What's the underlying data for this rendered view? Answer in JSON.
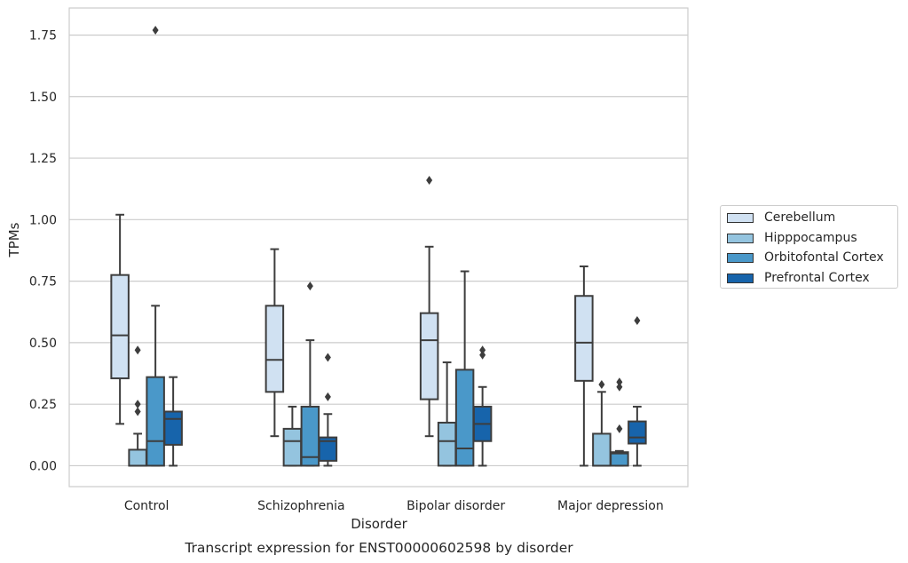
{
  "chart_data": {
    "type": "box",
    "caption": "Transcript expression for ENST00000602598 by disorder",
    "xlabel": "Disorder",
    "ylabel": "TPMs",
    "ylim": [
      -0.085,
      1.86
    ],
    "yticks": [
      0.0,
      0.25,
      0.5,
      0.75,
      1.0,
      1.25,
      1.5,
      1.75
    ],
    "ytick_labels": [
      "0.00",
      "0.25",
      "0.50",
      "0.75",
      "1.00",
      "1.25",
      "1.50",
      "1.75"
    ],
    "grid": true,
    "legend_position": "right",
    "categories": [
      "Control",
      "Schizophrenia",
      "Bipolar disorder",
      "Major depression"
    ],
    "series": [
      {
        "name": "Cerebellum",
        "color": "#d0e1f2",
        "boxes": [
          {
            "whisker_low": 0.17,
            "q1": 0.355,
            "median": 0.53,
            "q3": 0.775,
            "whisker_high": 1.02,
            "outliers": []
          },
          {
            "whisker_low": 0.12,
            "q1": 0.3,
            "median": 0.43,
            "q3": 0.65,
            "whisker_high": 0.88,
            "outliers": []
          },
          {
            "whisker_low": 0.12,
            "q1": 0.27,
            "median": 0.51,
            "q3": 0.62,
            "whisker_high": 0.89,
            "outliers": [
              1.16
            ]
          },
          {
            "whisker_low": 0.0,
            "q1": 0.345,
            "median": 0.5,
            "q3": 0.69,
            "whisker_high": 0.81,
            "outliers": []
          }
        ]
      },
      {
        "name": "Hipppocampus",
        "color": "#94c4df",
        "boxes": [
          {
            "whisker_low": 0.0,
            "q1": 0.0,
            "median": 0.0,
            "q3": 0.065,
            "whisker_high": 0.13,
            "outliers": [
              0.22,
              0.25,
              0.47
            ]
          },
          {
            "whisker_low": 0.0,
            "q1": 0.0,
            "median": 0.1,
            "q3": 0.15,
            "whisker_high": 0.24,
            "outliers": []
          },
          {
            "whisker_low": 0.0,
            "q1": 0.0,
            "median": 0.1,
            "q3": 0.175,
            "whisker_high": 0.42,
            "outliers": []
          },
          {
            "whisker_low": 0.0,
            "q1": 0.0,
            "median": 0.0,
            "q3": 0.13,
            "whisker_high": 0.3,
            "outliers": [
              0.33
            ]
          }
        ]
      },
      {
        "name": "Orbitofontal Cortex",
        "color": "#4a98c9",
        "boxes": [
          {
            "whisker_low": 0.0,
            "q1": 0.0,
            "median": 0.1,
            "q3": 0.36,
            "whisker_high": 0.65,
            "outliers": [
              1.77
            ]
          },
          {
            "whisker_low": 0.0,
            "q1": 0.0,
            "median": 0.035,
            "q3": 0.24,
            "whisker_high": 0.51,
            "outliers": [
              0.73
            ]
          },
          {
            "whisker_low": 0.0,
            "q1": 0.0,
            "median": 0.07,
            "q3": 0.39,
            "whisker_high": 0.79,
            "outliers": []
          },
          {
            "whisker_low": 0.0,
            "q1": 0.0,
            "median": 0.05,
            "q3": 0.055,
            "whisker_high": 0.06,
            "outliers": [
              0.15,
              0.32,
              0.34
            ]
          }
        ]
      },
      {
        "name": "Prefrontal Cortex",
        "color": "#1764ab",
        "boxes": [
          {
            "whisker_low": 0.0,
            "q1": 0.085,
            "median": 0.19,
            "q3": 0.22,
            "whisker_high": 0.36,
            "outliers": []
          },
          {
            "whisker_low": 0.0,
            "q1": 0.02,
            "median": 0.1,
            "q3": 0.115,
            "whisker_high": 0.21,
            "outliers": [
              0.28,
              0.44
            ]
          },
          {
            "whisker_low": 0.0,
            "q1": 0.1,
            "median": 0.17,
            "q3": 0.24,
            "whisker_high": 0.32,
            "outliers": [
              0.45,
              0.47
            ]
          },
          {
            "whisker_low": 0.0,
            "q1": 0.09,
            "median": 0.115,
            "q3": 0.18,
            "whisker_high": 0.24,
            "outliers": [
              0.59
            ]
          }
        ]
      }
    ]
  }
}
